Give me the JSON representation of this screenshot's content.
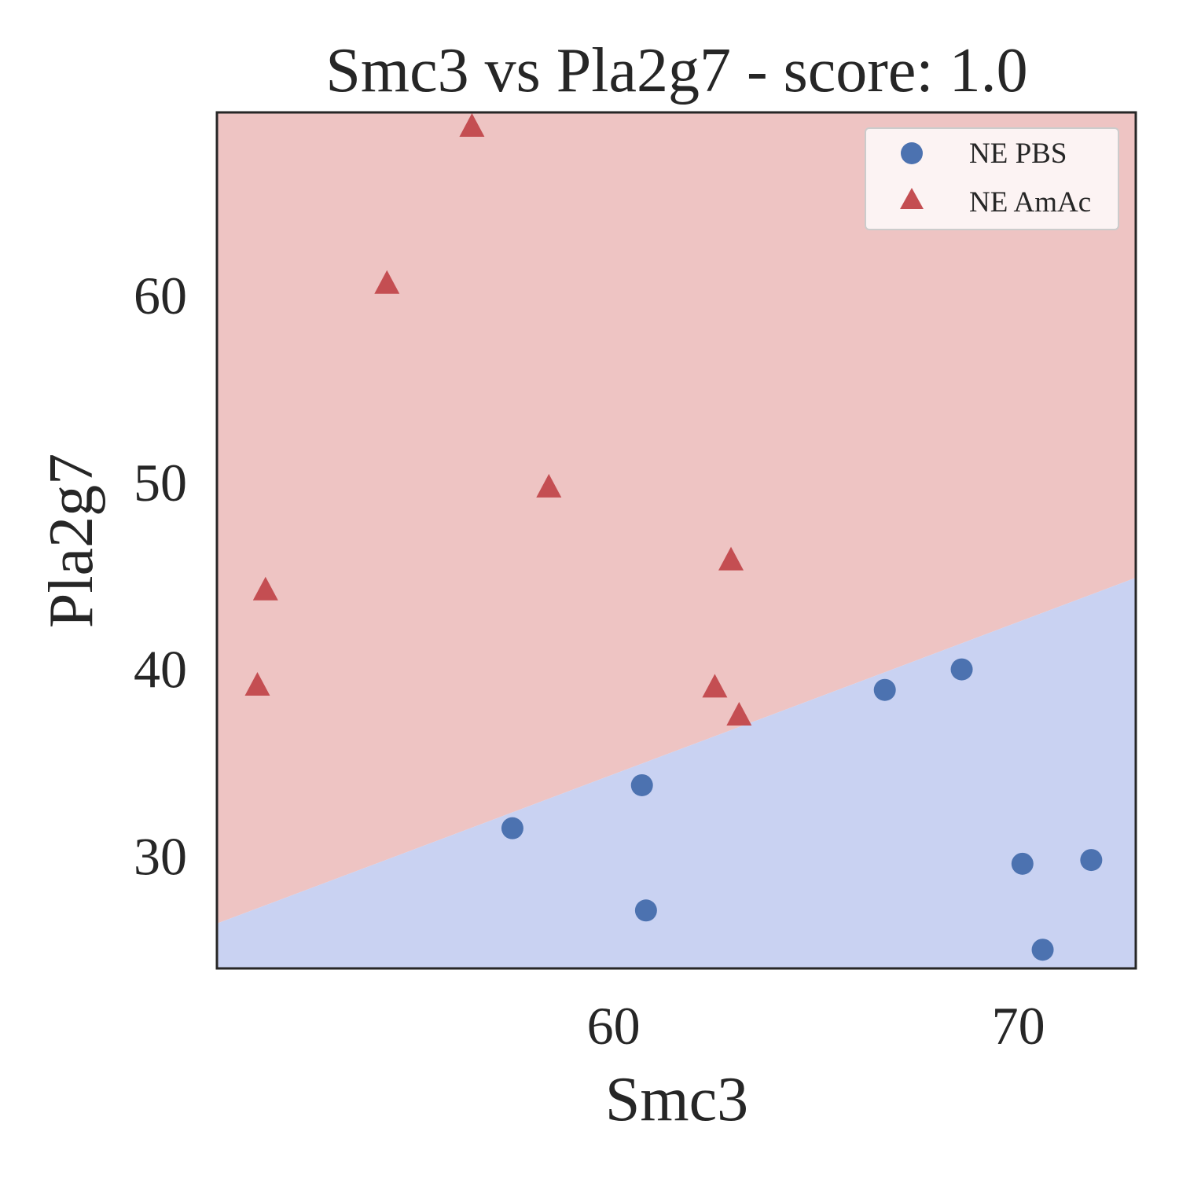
{
  "chart_data": {
    "type": "scatter",
    "title": "Smc3 vs Pla2g7 - score: 1.0",
    "xlabel": "Smc3",
    "ylabel": "Pla2g7",
    "xlim": [
      50.2,
      72.9
    ],
    "ylim": [
      24.0,
      69.8
    ],
    "x_ticks": [
      60,
      70
    ],
    "y_ticks": [
      30,
      40,
      50,
      60
    ],
    "grid": false,
    "legend_position": "top-right",
    "decision_boundary": {
      "points": [
        [
          50.2,
          26.4
        ],
        [
          72.9,
          44.9
        ]
      ],
      "upper_region_color": "#eec4c3",
      "lower_region_color": "#c9d2f2"
    },
    "series": [
      {
        "name": "NE PBS",
        "marker": "circle",
        "color": "#4c72b0",
        "points": [
          [
            57.5,
            31.5
          ],
          [
            60.7,
            33.8
          ],
          [
            60.8,
            27.1
          ],
          [
            66.7,
            38.9
          ],
          [
            68.6,
            40.0
          ],
          [
            70.1,
            29.6
          ],
          [
            70.6,
            25.0
          ],
          [
            71.8,
            29.8
          ]
        ]
      },
      {
        "name": "NE AmAc",
        "marker": "triangle",
        "color": "#c44e52",
        "points": [
          [
            51.2,
            39.1
          ],
          [
            51.4,
            44.2
          ],
          [
            54.4,
            60.6
          ],
          [
            56.5,
            69.0
          ],
          [
            58.4,
            49.7
          ],
          [
            62.5,
            39.0
          ],
          [
            62.9,
            45.8
          ],
          [
            63.1,
            37.5
          ]
        ]
      }
    ]
  }
}
